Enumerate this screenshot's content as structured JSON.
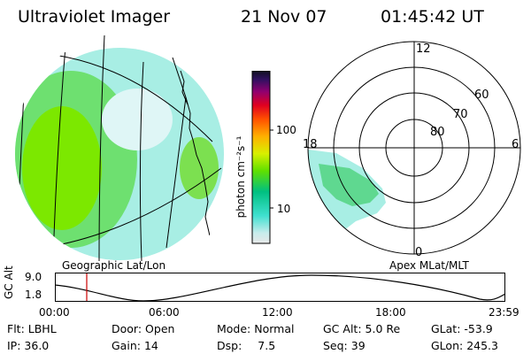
{
  "header": {
    "title": "Ultraviolet Imager",
    "date": "21 Nov 07",
    "time": "01:45:42 UT"
  },
  "colorbar": {
    "unit_label": "photon cm⁻²s⁻¹",
    "tick_100": "100",
    "tick_10": "10",
    "stops": [
      "#e8e8e8",
      "#c8ecec",
      "#40e0d0",
      "#00c080",
      "#60e000",
      "#d8f000",
      "#ffb000",
      "#ff5000",
      "#e00020",
      "#900070",
      "#301060",
      "#101020"
    ]
  },
  "panels": {
    "geo_label": "Geographic Lat/Lon",
    "apex_label": "Apex MLat/MLT"
  },
  "polar": {
    "mlt_12": "12",
    "mlt_18": "18",
    "mlt_6": "6",
    "mlt_0": "0",
    "lat_60": "60",
    "lat_70": "70",
    "lat_80": "80"
  },
  "altitude_plot": {
    "axis_title": "GC Alt",
    "y_max": "9.0",
    "y_min": "1.8",
    "x_ticks": [
      "00:00",
      "06:00",
      "12:00",
      "18:00",
      "23:59"
    ],
    "marker_time": "01:45"
  },
  "info": {
    "filter_label": "Flt:",
    "filter_value": "LBHL",
    "door_label": "Door:",
    "door_value": "Open",
    "mode_label": "Mode:",
    "mode_value": "Normal",
    "gcalt_label": "GC Alt:",
    "gcalt_value": "5.0 Re",
    "glat_label": "GLat:",
    "glat_value": "-53.9",
    "ip_label": "IP:",
    "ip_value": "36.0",
    "gain_label": "Gain:",
    "gain_value": "14",
    "dsp_label": "Dsp:",
    "dsp_value": "7.5",
    "seq_label": "Seq:",
    "seq_value": "39",
    "glon_label": "GLon:",
    "glon_value": "245.3"
  },
  "colors": {
    "grid": "#000000",
    "coast": "#000000",
    "marker": "#cc0000",
    "orbit": "#000000"
  }
}
